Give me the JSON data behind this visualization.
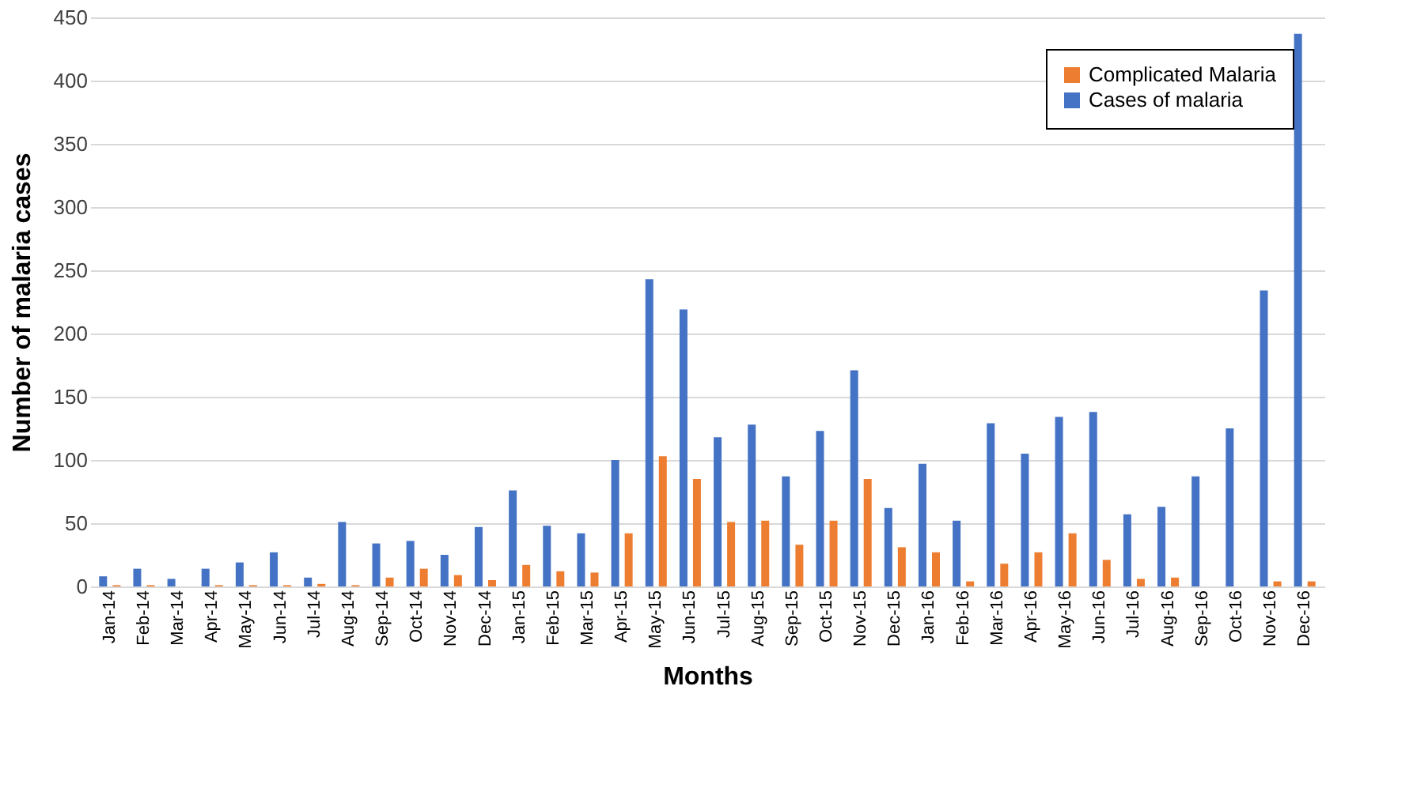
{
  "chart_data": {
    "type": "bar",
    "xlabel": "Months",
    "ylabel": "Number of malaria cases",
    "categories": [
      "Jan-14",
      "Feb-14",
      "Mar-14",
      "Apr-14",
      "May-14",
      "Jun-14",
      "Jul-14",
      "Aug-14",
      "Sep-14",
      "Oct-14",
      "Nov-14",
      "Dec-14",
      "Jan-15",
      "Feb-15",
      "Mar-15",
      "Apr-15",
      "May-15",
      "Jun-15",
      "Jul-15",
      "Aug-15",
      "Sep-15",
      "Oct-15",
      "Nov-15",
      "Dec-15",
      "Jan-16",
      "Feb-16",
      "Mar-16",
      "Apr-16",
      "May-16",
      "Jun-16",
      "Jul-16",
      "Aug-16",
      "Sep-16",
      "Oct-16",
      "Nov-16",
      "Dec-16"
    ],
    "series": [
      {
        "name": "Complicated Malaria",
        "color": "#ed7d31",
        "values": [
          1,
          1,
          0,
          1,
          1,
          1,
          2,
          1,
          7,
          14,
          9,
          5,
          17,
          12,
          11,
          42,
          103,
          85,
          51,
          52,
          33,
          52,
          85,
          31,
          27,
          4,
          18,
          27,
          42,
          21,
          6,
          7,
          0,
          0,
          4,
          4
        ]
      },
      {
        "name": "Cases of malaria",
        "color": "#4472c4",
        "values": [
          8,
          14,
          6,
          14,
          19,
          27,
          7,
          51,
          34,
          36,
          25,
          47,
          76,
          48,
          42,
          100,
          243,
          219,
          118,
          128,
          87,
          123,
          171,
          62,
          97,
          52,
          129,
          105,
          134,
          138,
          57,
          63,
          87,
          125,
          234,
          437
        ]
      }
    ],
    "ylim": [
      0,
      450
    ],
    "yticks": [
      0,
      50,
      100,
      150,
      200,
      250,
      300,
      350,
      400,
      450
    ],
    "grid": "y",
    "legend": "top right"
  }
}
